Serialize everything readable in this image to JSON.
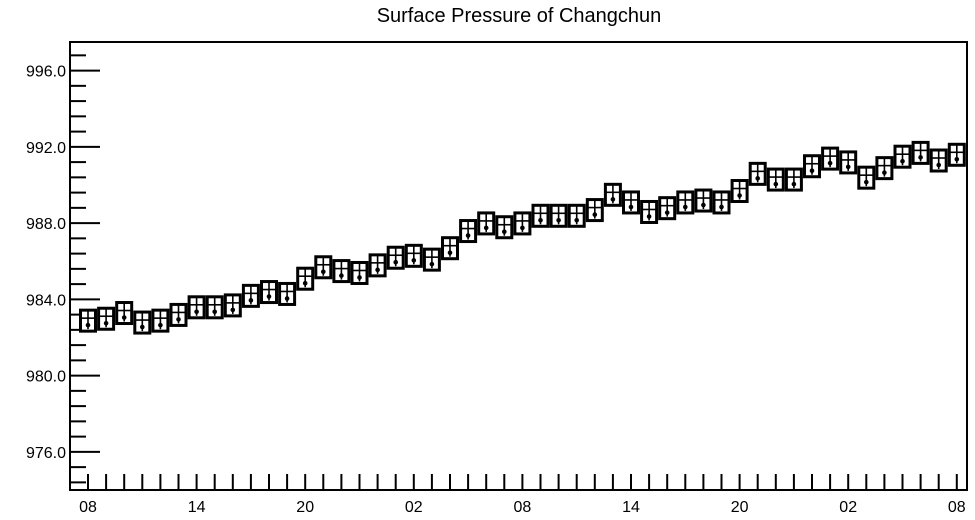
{
  "chart_data": {
    "type": "scatter",
    "title": "Surface Pressure of Changchun",
    "xlabel": "",
    "ylabel": "",
    "ylim": [
      974.0,
      997.5
    ],
    "xlim": [
      0,
      49
    ],
    "grid": false,
    "legend": "none",
    "x_tick_labels": [
      "08",
      "14",
      "20",
      "02",
      "08",
      "14",
      "20",
      "02",
      "08"
    ],
    "x_tick_positions": [
      0,
      6,
      12,
      18,
      24,
      30,
      36,
      42,
      48
    ],
    "y_tick_labels": [
      "976.0",
      "980.0",
      "984.0",
      "988.0",
      "992.0",
      "996.0"
    ],
    "y_tick_values": [
      976.0,
      980.0,
      984.0,
      988.0,
      992.0,
      996.0
    ],
    "series": [
      {
        "marker": "boxed-bar",
        "x": [
          0,
          1,
          2,
          3,
          4,
          5,
          6,
          7,
          8,
          9,
          10,
          11,
          12,
          13,
          14,
          15,
          16,
          17,
          18,
          19,
          20,
          21,
          22,
          23,
          24,
          25,
          26,
          27,
          28,
          29,
          30,
          31,
          32,
          33,
          34,
          35,
          36,
          37,
          38,
          39,
          40,
          41,
          42,
          43,
          44,
          45,
          46,
          47,
          48
        ],
        "y": [
          982.7,
          982.8,
          983.1,
          982.6,
          982.7,
          983.0,
          983.4,
          983.4,
          983.5,
          984.0,
          984.2,
          984.1,
          984.9,
          985.5,
          985.3,
          985.2,
          985.6,
          986.0,
          986.1,
          985.9,
          986.5,
          987.4,
          987.8,
          987.6,
          987.8,
          988.2,
          988.2,
          988.2,
          988.5,
          989.3,
          988.9,
          988.4,
          988.6,
          988.9,
          989.0,
          988.9,
          989.5,
          990.4,
          990.1,
          990.1,
          990.8,
          991.2,
          991.0,
          990.2,
          990.7,
          991.3,
          991.5,
          991.1,
          991.4
        ]
      }
    ]
  }
}
